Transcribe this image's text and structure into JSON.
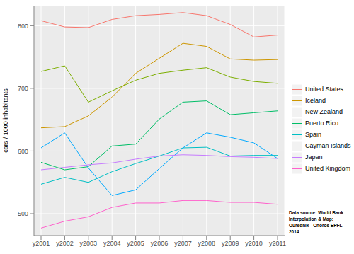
{
  "chart_data": {
    "type": "line",
    "y_label": "cars / 1000 inhabitants",
    "categories": [
      "y2001",
      "y2002",
      "y2003",
      "y2004",
      "y2005",
      "y2006",
      "y2007",
      "y2008",
      "y2009",
      "y2010",
      "y2011"
    ],
    "series": [
      {
        "name": "United States",
        "color": "#F8766D",
        "values": [
          808,
          798,
          797,
          810,
          816,
          818,
          821,
          816,
          802,
          782,
          785
        ]
      },
      {
        "name": "Iceland",
        "color": "#CD9600",
        "values": [
          637,
          639,
          656,
          686,
          724,
          748,
          772,
          767,
          747,
          745,
          746
        ]
      },
      {
        "name": "New Zealand",
        "color": "#7CAE00",
        "values": [
          727,
          736,
          678,
          696,
          713,
          724,
          729,
          733,
          718,
          711,
          708
        ]
      },
      {
        "name": "Puerto Rico",
        "color": "#00BE67",
        "values": [
          582,
          570,
          575,
          608,
          611,
          651,
          678,
          680,
          658,
          661,
          664
        ]
      },
      {
        "name": "Spain",
        "color": "#00BFC4",
        "values": [
          547,
          558,
          550,
          567,
          580,
          592,
          605,
          606,
          592,
          593,
          593
        ]
      },
      {
        "name": "Cayman Islands",
        "color": "#00A9FF",
        "values": [
          605,
          629,
          573,
          529,
          538,
          572,
          605,
          629,
          622,
          613,
          588
        ]
      },
      {
        "name": "Japan",
        "color": "#C77CFF",
        "values": [
          570,
          574,
          578,
          581,
          587,
          592,
          594,
          593,
          591,
          590,
          588
        ]
      },
      {
        "name": "United Kingdom",
        "color": "#FF61CC",
        "values": [
          477,
          488,
          495,
          510,
          517,
          517,
          521,
          521,
          518,
          518,
          515
        ]
      }
    ],
    "ylim": [
      465,
      832
    ],
    "yticks": [
      500,
      600,
      700,
      800
    ],
    "grid": true,
    "legend": "right",
    "annotations": [
      "Data source: World Bank",
      "Interpolation & Map:",
      "Ouredník - Chôros EPFL",
      "2014"
    ]
  }
}
